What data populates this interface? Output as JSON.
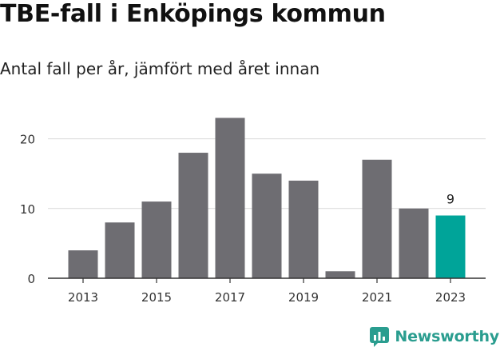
{
  "header": {
    "title": "TBE-fall i Enköpings kommun",
    "subtitle": "Antal fall per år, jämfört med året innan"
  },
  "brand": {
    "name": "Newsworthy",
    "icon": "newsworthy-logo-icon",
    "color": "#2a9d8f"
  },
  "chart_data": {
    "type": "bar",
    "categories": [
      "2013",
      "2014",
      "2015",
      "2016",
      "2017",
      "2018",
      "2019",
      "2020",
      "2021",
      "2022",
      "2023"
    ],
    "values": [
      4,
      8,
      11,
      18,
      23,
      15,
      14,
      1,
      17,
      10,
      9
    ],
    "tick_labels_x": [
      "2013",
      "2015",
      "2017",
      "2019",
      "2021",
      "2023"
    ],
    "yticks": [
      0,
      10,
      20
    ],
    "ylim": [
      0,
      25
    ],
    "grid": true,
    "colors": {
      "default": "#6e6d72",
      "highlight": "#00a499"
    },
    "highlight_category": "2023",
    "annotations": [
      {
        "category": "2023",
        "label": "9"
      }
    ]
  }
}
